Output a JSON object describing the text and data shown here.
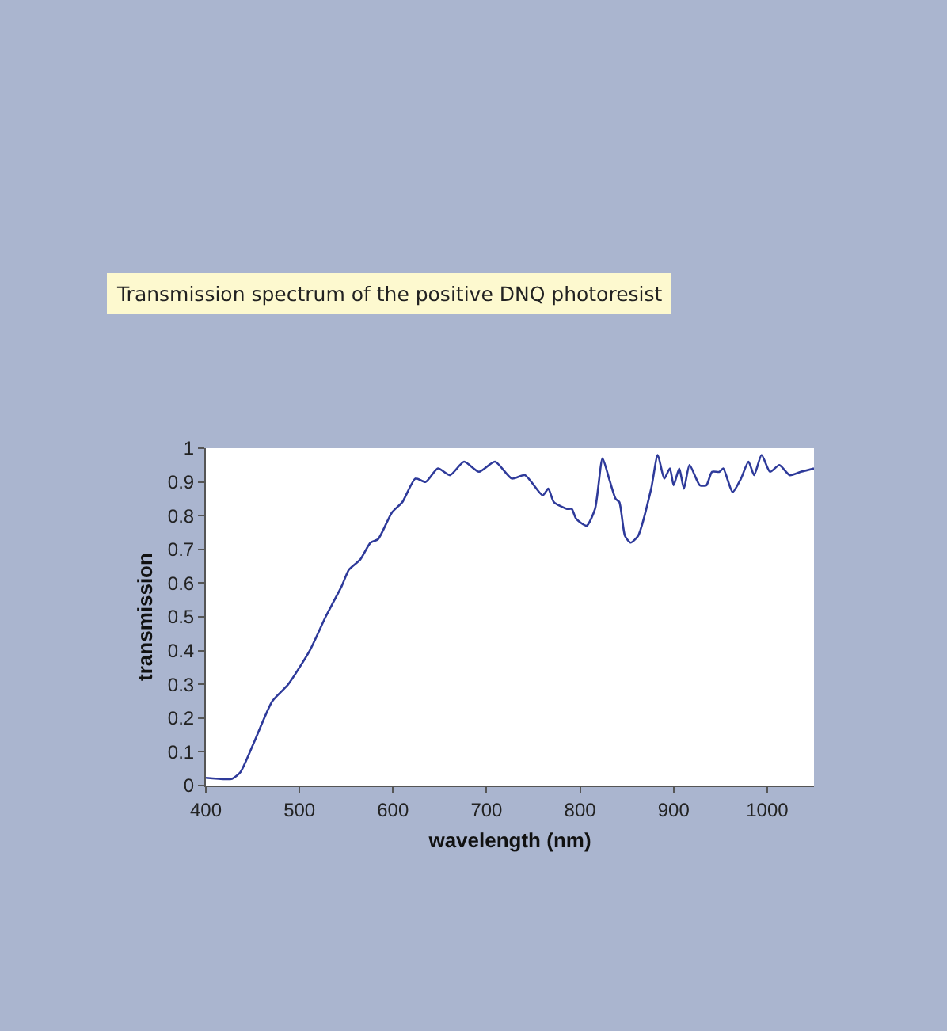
{
  "chart_data": {
    "type": "line",
    "title": "Transmission spectrum of the positive DNQ photoresist",
    "xlabel": "wavelength (nm)",
    "ylabel": "transmission",
    "xlim": [
      400,
      1050
    ],
    "xticks": [
      400,
      500,
      600,
      700,
      800,
      900,
      1000
    ],
    "ylim": [
      0,
      1
    ],
    "yticks": [
      0,
      0.1,
      0.2,
      0.3,
      0.4,
      0.5,
      0.6,
      0.7,
      0.8,
      0.9,
      1
    ],
    "line_style": "solid",
    "series": [
      {
        "color": "#2e3a9a",
        "x": [
          400,
          428,
          437,
          451,
          471,
          488,
          511,
          528,
          545,
          553,
          565,
          576,
          584,
          599,
          610,
          624,
          635,
          648,
          661,
          676,
          692,
          709,
          727,
          741,
          760,
          766,
          772,
          786,
          791,
          796,
          807,
          816,
          824,
          831,
          838,
          842,
          848,
          854,
          862,
          876,
          883,
          890,
          896,
          900,
          906,
          911,
          917,
          928,
          935,
          941,
          949,
          953,
          963,
          972,
          980,
          986,
          994,
          1003,
          1013,
          1024,
          1036,
          1050
        ],
        "values": [
          0.023,
          0.02,
          0.04,
          0.125,
          0.25,
          0.3,
          0.4,
          0.5,
          0.59,
          0.64,
          0.67,
          0.72,
          0.73,
          0.81,
          0.84,
          0.91,
          0.9,
          0.94,
          0.92,
          0.96,
          0.93,
          0.96,
          0.91,
          0.92,
          0.86,
          0.88,
          0.84,
          0.82,
          0.82,
          0.79,
          0.77,
          0.82,
          0.97,
          0.91,
          0.85,
          0.84,
          0.74,
          0.72,
          0.74,
          0.88,
          0.98,
          0.91,
          0.94,
          0.89,
          0.94,
          0.88,
          0.95,
          0.89,
          0.89,
          0.93,
          0.93,
          0.94,
          0.87,
          0.91,
          0.96,
          0.92,
          0.98,
          0.93,
          0.95,
          0.92,
          0.93,
          0.94
        ]
      }
    ]
  }
}
